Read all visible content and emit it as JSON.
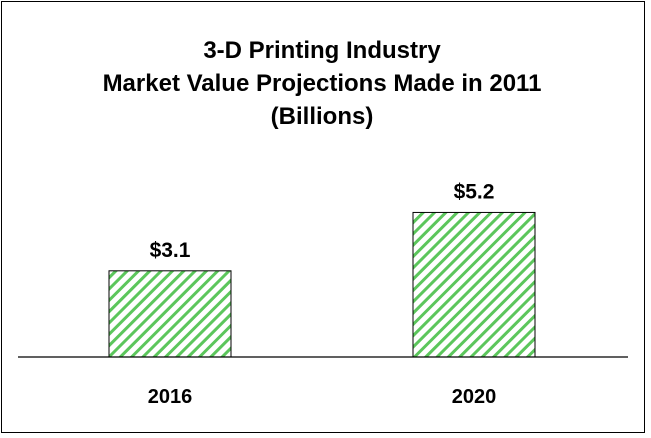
{
  "chart_data": {
    "type": "bar",
    "title_lines": [
      "3-D Printing Industry",
      "Market Value Projections Made in 2011",
      "(Billions)"
    ],
    "categories": [
      "2016",
      "2020"
    ],
    "values": [
      3.1,
      5.2
    ],
    "value_labels": [
      "$3.1",
      "$5.2"
    ],
    "xlabel": "",
    "ylabel": "",
    "grid": false,
    "legend": "none",
    "colors": {
      "bar_fill": "#ffffff",
      "bar_hatch": "#5cc65c",
      "bar_border": "#000000",
      "axis": "#000000",
      "text": "#000000",
      "background": "#ffffff"
    }
  }
}
